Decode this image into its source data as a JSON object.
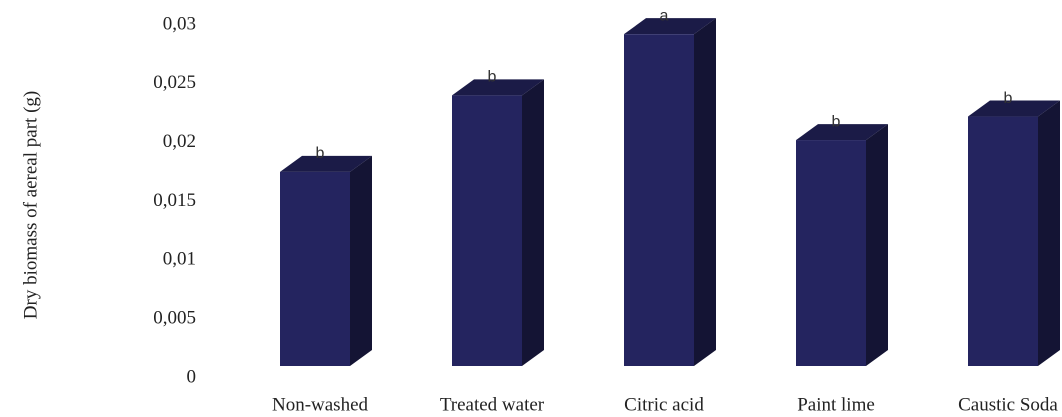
{
  "chart_data": {
    "type": "bar3d",
    "y_label": "Dry biomass of aereal part (g)",
    "categories": [
      "Non-washed",
      "Treated water",
      "Citric acid",
      "Paint lime",
      "Caustic Soda"
    ],
    "values": [
      0.0165,
      0.023,
      0.0282,
      0.0192,
      0.0212
    ],
    "annotations": [
      "b",
      "b",
      "a",
      "b",
      "b"
    ],
    "color": "#24245f",
    "ylim": [
      0,
      0.03
    ],
    "yticks": [
      0,
      {
        "value": 0.005,
        "label": "0,005"
      },
      {
        "value": 0.01,
        "label": "0,01"
      },
      {
        "value": 0.015,
        "label": "0,015"
      },
      {
        "value": 0.02,
        "label": "0,02"
      },
      {
        "value": 0.025,
        "label": "0,025"
      },
      {
        "value": 0.03,
        "label": "0,03"
      }
    ]
  }
}
